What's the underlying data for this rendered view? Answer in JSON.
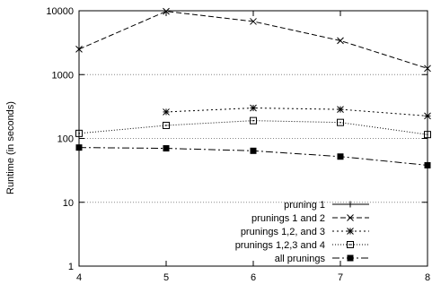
{
  "chart_data": {
    "type": "line",
    "ylabel": "Runtime (in seconds)",
    "xlabel": "",
    "title": "",
    "x": [
      4,
      5,
      6,
      7,
      8
    ],
    "xticks": [
      "4",
      "5",
      "6",
      "7",
      "8"
    ],
    "xlim": [
      4,
      8
    ],
    "ylim": [
      1,
      10000
    ],
    "yscale": "log",
    "yticks": [
      "1",
      "10",
      "100",
      "1000",
      "10000"
    ],
    "grid": "horizontal dotted",
    "legend_position": "bottom-right",
    "series": [
      {
        "name": "pruning 1",
        "dash": "",
        "marker": "plus",
        "values": [
          null,
          null,
          null,
          null,
          null
        ]
      },
      {
        "name": "prunings 1 and 2",
        "dash": "6,3",
        "marker": "x",
        "values": [
          2500,
          9800,
          6800,
          3400,
          1250
        ]
      },
      {
        "name": "prunings 1,2, and 3",
        "dash": "2,3",
        "marker": "star",
        "values": [
          null,
          260,
          300,
          285,
          225
        ]
      },
      {
        "name": "prunings 1,2,3 and 4",
        "dash": "1,2",
        "marker": "open-square",
        "values": [
          120,
          160,
          190,
          178,
          115
        ]
      },
      {
        "name": "all prunings",
        "dash": "8,3,2,3",
        "marker": "filled-square",
        "values": [
          72,
          70,
          64,
          52,
          38
        ]
      }
    ]
  }
}
